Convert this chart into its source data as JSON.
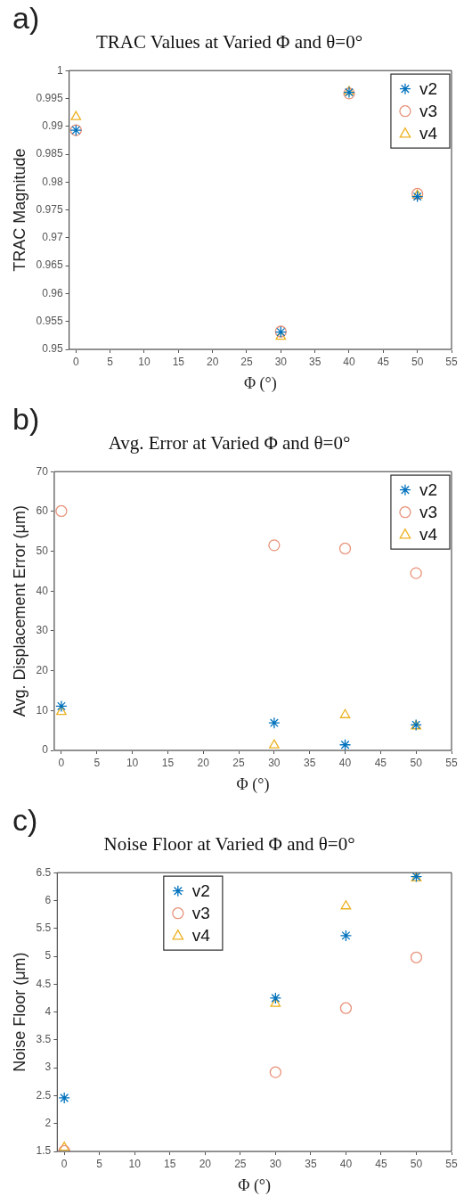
{
  "chart_data": [
    {
      "type": "scatter",
      "title": "TRAC Values at Varied Φ and θ=0°",
      "xlabel": "Φ (°)",
      "ylabel": "TRAC Magnitude",
      "annotations": [
        "a)"
      ],
      "x": [
        0,
        30,
        40,
        50
      ],
      "xlim": [
        -1,
        55
      ],
      "xticks": [
        0,
        5,
        10,
        15,
        20,
        25,
        30,
        35,
        40,
        45,
        50,
        55
      ],
      "ylim": [
        0.95,
        1
      ],
      "yticks": [
        0.95,
        0.955,
        0.96,
        0.965,
        0.97,
        0.975,
        0.98,
        0.985,
        0.99,
        0.995,
        1
      ],
      "grid": false,
      "legend": "top right",
      "series": [
        {
          "name": "v2",
          "color": "#0072bd",
          "marker": "cross",
          "values": [
            0.9893,
            0.9531,
            0.9961,
            0.9774
          ]
        },
        {
          "name": "v3",
          "color": "#e8937a",
          "marker": "circle",
          "values": [
            0.9893,
            0.9532,
            0.9959,
            0.9779
          ]
        },
        {
          "name": "v4",
          "color": "#edb120",
          "marker": "triangle",
          "values": [
            0.9917,
            0.9523,
            0.9962,
            0.9776
          ]
        }
      ]
    },
    {
      "type": "scatter",
      "title": "Avg. Error at Varied Φ and θ=0°",
      "xlabel": "Φ (°)",
      "ylabel": "Avg. Displacement Error (μm)",
      "annotations": [
        "b)"
      ],
      "x": [
        0,
        30,
        40,
        50
      ],
      "xlim": [
        -1,
        55
      ],
      "xticks": [
        0,
        5,
        10,
        15,
        20,
        25,
        30,
        35,
        40,
        45,
        50,
        55
      ],
      "ylim": [
        0,
        70
      ],
      "yticks": [
        0,
        10,
        20,
        30,
        40,
        50,
        60,
        70
      ],
      "grid": false,
      "legend": "top right",
      "series": [
        {
          "name": "v2",
          "color": "#0072bd",
          "marker": "cross",
          "values": [
            11.1,
            6.9,
            1.4,
            6.4
          ]
        },
        {
          "name": "v3",
          "color": "#e8937a",
          "marker": "circle",
          "values": [
            60.1,
            51.5,
            50.7,
            44.5
          ]
        },
        {
          "name": "v4",
          "color": "#edb120",
          "marker": "triangle",
          "values": [
            9.7,
            1.3,
            8.9,
            6.1
          ]
        }
      ]
    },
    {
      "type": "scatter",
      "title": "Noise Floor at Varied Φ and θ=0°",
      "xlabel": "Φ (°)",
      "ylabel": "Noise Floor (μm)",
      "annotations": [
        "c)"
      ],
      "x": [
        0,
        30,
        40,
        50
      ],
      "xlim": [
        -1,
        55
      ],
      "xticks": [
        0,
        5,
        10,
        15,
        20,
        25,
        30,
        35,
        40,
        45,
        50,
        55
      ],
      "ylim": [
        1.5,
        6.5
      ],
      "yticks": [
        1.5,
        2,
        2.5,
        3,
        3.5,
        4,
        4.5,
        5,
        5.5,
        6,
        6.5
      ],
      "grid": false,
      "legend": "top left",
      "series": [
        {
          "name": "v2",
          "color": "#0072bd",
          "marker": "cross",
          "values": [
            2.46,
            4.25,
            5.37,
            6.43
          ]
        },
        {
          "name": "v3",
          "color": "#e8937a",
          "marker": "circle",
          "values": [
            1.51,
            2.92,
            4.07,
            4.98
          ]
        },
        {
          "name": "v4",
          "color": "#edb120",
          "marker": "triangle",
          "values": [
            1.57,
            4.15,
            5.9,
            6.4
          ]
        }
      ]
    }
  ]
}
